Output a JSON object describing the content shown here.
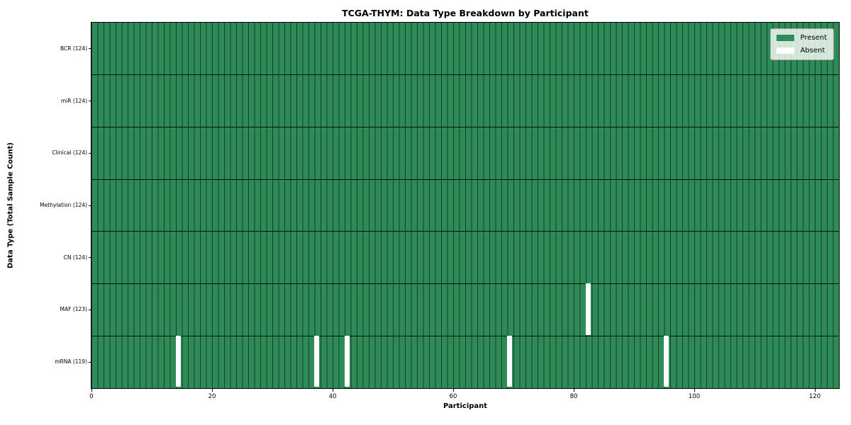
{
  "chart_data": {
    "type": "heatmap",
    "title": "TCGA-THYM: Data Type Breakdown by Participant",
    "xlabel": "Participant",
    "ylabel": "Data Type (Total Sample Count)",
    "x_ticks": [
      0,
      20,
      40,
      60,
      80,
      100,
      120
    ],
    "xlim": [
      0,
      124
    ],
    "n_participants": 124,
    "grid": "per-cell black edges, black row separators",
    "legend_position": "upper-right",
    "legend": [
      {
        "label": "Present",
        "color": "#2e8b57"
      },
      {
        "label": "Absent",
        "color": "#ffffff"
      }
    ],
    "rows": [
      {
        "data_type": "BCR",
        "total_samples": 124,
        "label": "BCR (124)",
        "absent_participants": []
      },
      {
        "data_type": "miR",
        "total_samples": 124,
        "label": "miR (124)",
        "absent_participants": []
      },
      {
        "data_type": "Clinical",
        "total_samples": 124,
        "label": "Clinical (124)",
        "absent_participants": []
      },
      {
        "data_type": "Methylation",
        "total_samples": 124,
        "label": "Methylation (124)",
        "absent_participants": []
      },
      {
        "data_type": "CN",
        "total_samples": 124,
        "label": "CN (124)",
        "absent_participants": []
      },
      {
        "data_type": "MAF",
        "total_samples": 123,
        "label": "MAF (123)",
        "absent_participants": [
          82
        ]
      },
      {
        "data_type": "mRNA",
        "total_samples": 119,
        "label": "mRNA (119)",
        "absent_participants": [
          14,
          37,
          42,
          69,
          95
        ]
      }
    ],
    "colors": {
      "present": "#2e8b57",
      "absent": "#ffffff",
      "cell_edge": "rgba(0,0,0,0.55)",
      "row_separator": "rgba(0,0,0,0.85)",
      "spine": "#000000"
    }
  }
}
